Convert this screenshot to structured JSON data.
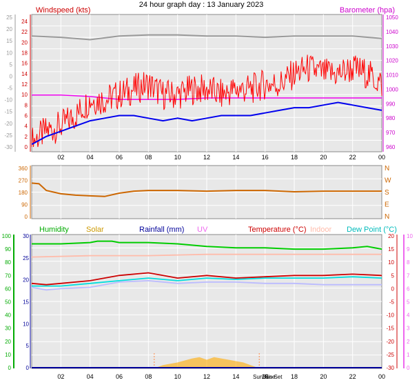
{
  "title": "24 hour graph day : 13 January 2023",
  "time_ticks": [
    "02",
    "04",
    "06",
    "08",
    "10",
    "12",
    "14",
    "16",
    "18",
    "20",
    "22",
    "00"
  ],
  "chart_data": [
    {
      "type": "line",
      "title": "",
      "left_axis": {
        "label": "Windspeed (kts)",
        "color": "#cc0000",
        "range": [
          0,
          24
        ],
        "ticks": [
          "24",
          "22",
          "20",
          "18",
          "16",
          "14",
          "12",
          "10",
          "8",
          "6",
          "4",
          "2",
          "0"
        ]
      },
      "left_outer_axis": {
        "color": "#999999",
        "range": [
          -30,
          25
        ],
        "ticks": [
          "25",
          "20",
          "15",
          "10",
          "5",
          "0",
          "-5",
          "-10",
          "-15",
          "-20",
          "-25",
          "-30"
        ]
      },
      "right_axis": {
        "label": "Barometer (hpa)",
        "color": "#cc00cc",
        "range": [
          960,
          1050
        ],
        "ticks": [
          "1050",
          "1040",
          "1030",
          "1020",
          "1010",
          "1000",
          "990",
          "980",
          "970",
          "960"
        ]
      },
      "x_range_hours": [
        0,
        24
      ],
      "grid": true,
      "series": [
        {
          "color": "#999999",
          "axis": "left_outer",
          "x": [
            0,
            2,
            4,
            6,
            8,
            10,
            12,
            14,
            16,
            18,
            20,
            22,
            24
          ],
          "y": [
            17,
            16.5,
            15.5,
            17,
            17.5,
            17.5,
            17,
            17,
            16.5,
            17,
            17,
            17,
            16
          ]
        },
        {
          "color": "#ee00ee",
          "axis": "right",
          "x": [
            0,
            2,
            4,
            6,
            8,
            10,
            12,
            14,
            16,
            18,
            20,
            22,
            24
          ],
          "y": [
            996,
            996,
            995,
            993,
            993,
            993,
            994,
            994,
            994,
            994,
            994,
            994,
            994
          ]
        },
        {
          "color": "#ff0000",
          "axis": "left",
          "x": [
            0,
            1,
            2,
            3,
            4,
            5,
            6,
            7,
            8,
            9,
            10,
            11,
            12,
            13,
            14,
            15,
            16,
            17,
            18,
            19,
            20,
            21,
            22,
            23,
            24
          ],
          "y": [
            1,
            3,
            4,
            6,
            9,
            9,
            10,
            11,
            12,
            10,
            10,
            11,
            11,
            10,
            11,
            11,
            12,
            12,
            14,
            15,
            14,
            14,
            15,
            14,
            12
          ]
        },
        {
          "color": "#0000ee",
          "axis": "left",
          "x": [
            0,
            1,
            2,
            3,
            4,
            5,
            6,
            7,
            8,
            9,
            10,
            11,
            12,
            13,
            14,
            15,
            16,
            17,
            18,
            19,
            20,
            21,
            22,
            23,
            24
          ],
          "y": [
            0.5,
            2,
            3,
            4,
            5,
            5.5,
            6,
            6,
            5.5,
            5,
            5.5,
            5,
            5.5,
            6,
            6,
            6,
            6.5,
            7,
            7.5,
            7.5,
            8,
            8.5,
            8,
            7.5,
            7
          ]
        }
      ]
    },
    {
      "type": "line",
      "title": "",
      "left_axis": {
        "range": [
          0,
          360
        ],
        "ticks": [
          "360",
          "270",
          "180",
          "90",
          "0"
        ]
      },
      "right_axis": {
        "labels": [
          "N",
          "W",
          "S",
          "E",
          "N"
        ],
        "color": "#cc6600"
      },
      "x_range_hours": [
        0,
        24
      ],
      "grid": true,
      "series": [
        {
          "color": "#cc6600",
          "x": [
            0,
            0.5,
            1,
            2,
            3,
            4,
            5,
            6,
            7,
            8,
            10,
            12,
            14,
            16,
            18,
            20,
            22,
            24
          ],
          "y": [
            250,
            245,
            195,
            170,
            160,
            155,
            150,
            175,
            190,
            195,
            195,
            190,
            195,
            195,
            185,
            190,
            190,
            190
          ]
        }
      ]
    },
    {
      "type": "line",
      "title": "",
      "legend": [
        {
          "label": "Humidity",
          "color": "#00aa00"
        },
        {
          "label": "Solar",
          "color": "#cc9900"
        },
        {
          "label": "Rainfall (mm)",
          "color": "#000099"
        },
        {
          "label": "UV",
          "color": "#ee66ee"
        },
        {
          "label": "Temperature (°C)",
          "color": "#cc0000"
        },
        {
          "label": "Indoor",
          "color": "#ffbbaa"
        },
        {
          "label": "Dew Point (°C)",
          "color": "#00cccc"
        }
      ],
      "axes": [
        {
          "name": "humidity",
          "range": [
            0,
            100
          ],
          "ticks": [
            "100",
            "90",
            "80",
            "70",
            "60",
            "50",
            "40",
            "30",
            "20",
            "10",
            "0"
          ],
          "color": "#00aa00"
        },
        {
          "name": "rainfall",
          "range": [
            0,
            30
          ],
          "ticks": [
            "30",
            "25",
            "20",
            "15",
            "10",
            "5",
            "0"
          ],
          "color": "#000099"
        },
        {
          "name": "temperature",
          "range": [
            -30,
            20
          ],
          "ticks": [
            "20",
            "15",
            "10",
            "5",
            "0",
            "-5",
            "-10",
            "-15",
            "-20",
            "-25",
            "-30"
          ],
          "color": "#cc0000"
        },
        {
          "name": "uv",
          "range": [
            0,
            10
          ],
          "ticks": [
            "10",
            "9",
            "8",
            "7",
            "6",
            "5",
            "4",
            "3",
            "2",
            "1",
            "0"
          ],
          "color": "#ee66ee"
        }
      ],
      "annotations": [
        "Sun Rise",
        "Sun Set"
      ],
      "x_range_hours": [
        0,
        24
      ],
      "grid": true,
      "series": [
        {
          "color": "#00cc00",
          "axis": "humidity",
          "x": [
            0,
            2,
            4,
            4.5,
            5.5,
            6,
            8,
            10,
            12,
            14,
            16,
            18,
            20,
            22,
            23,
            24
          ],
          "y": [
            94,
            94,
            95,
            96,
            96,
            95,
            95,
            94,
            92,
            91,
            91,
            90,
            90,
            91,
            92,
            90
          ]
        },
        {
          "color": "#ffbbaa",
          "axis": "temperature",
          "x": [
            0,
            4,
            8,
            12,
            16,
            20,
            24
          ],
          "y": [
            12,
            12.5,
            12.5,
            13,
            13,
            13,
            13
          ]
        },
        {
          "color": "#cc0000",
          "axis": "temperature",
          "x": [
            0,
            1,
            2,
            4,
            6,
            8,
            9,
            10,
            12,
            14,
            16,
            18,
            20,
            22,
            24
          ],
          "y": [
            2,
            1.5,
            2,
            3,
            5,
            6,
            5,
            4,
            5,
            4,
            4.5,
            5,
            5,
            5.5,
            5
          ]
        },
        {
          "color": "#00dddd",
          "axis": "temperature",
          "x": [
            0,
            2,
            4,
            6,
            8,
            10,
            12,
            14,
            16,
            18,
            20,
            22,
            24
          ],
          "y": [
            1,
            1,
            2,
            3,
            4,
            3,
            4,
            3.5,
            4,
            4,
            4,
            4.5,
            4
          ]
        },
        {
          "color": "#bbbbff",
          "axis": "temperature",
          "x": [
            0,
            1,
            2,
            4,
            6,
            8,
            10,
            12,
            14,
            16,
            18,
            20,
            22,
            24
          ],
          "y": [
            0.5,
            -0.5,
            0,
            0.5,
            2.5,
            3,
            2,
            2.5,
            2.5,
            2,
            2,
            1.5,
            1.5,
            1.5
          ]
        },
        {
          "color": "#ffaa00",
          "axis": "uv",
          "type": "area",
          "x": [
            8.5,
            9,
            10,
            11,
            11.5,
            12,
            12.5,
            13,
            13.5,
            14,
            14.5,
            15,
            15.5
          ],
          "y": [
            0,
            0.2,
            0.4,
            0.7,
            0.8,
            0.6,
            0.8,
            0.7,
            0.6,
            0.5,
            0.4,
            0.2,
            0
          ]
        }
      ]
    }
  ]
}
